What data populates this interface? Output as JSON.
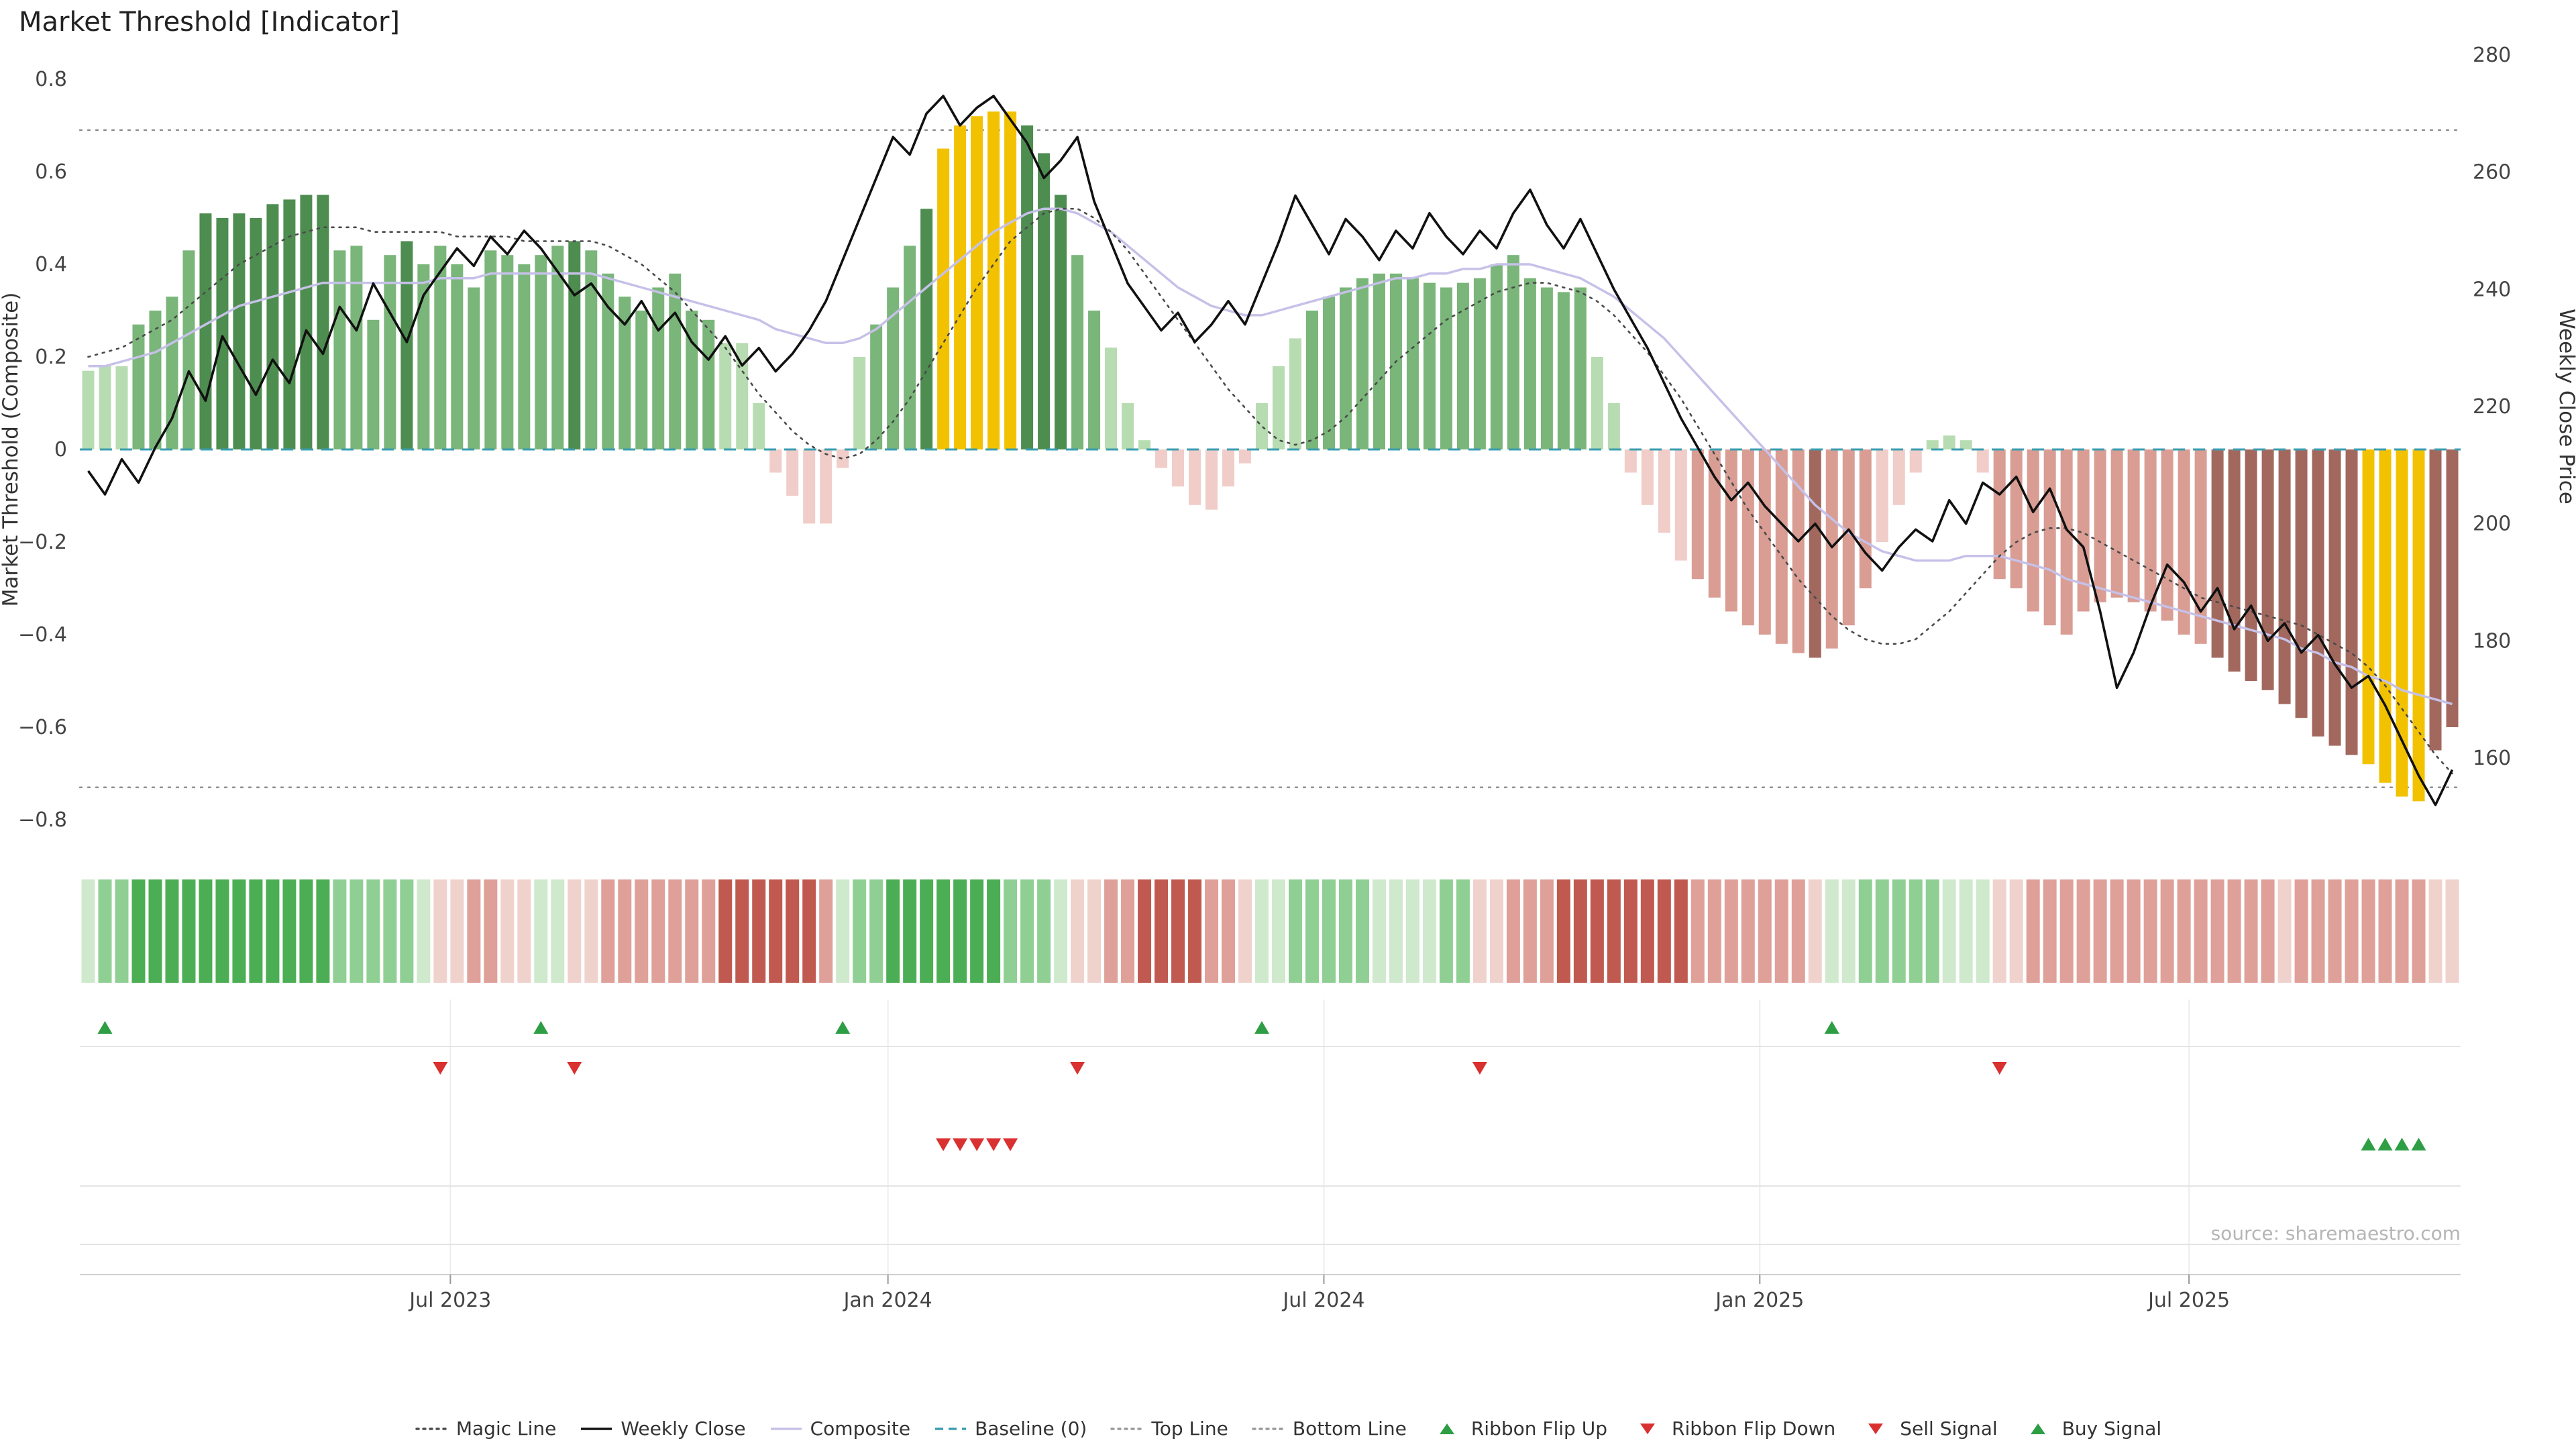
{
  "title": "Market Threshold [Indicator]",
  "source": "source: sharemaestro.com",
  "axes": {
    "left_label": "Market Threshold (Composite)",
    "right_label": "Weekly Close Price",
    "left_ticks": [
      "0.8",
      "0.6",
      "0.4",
      "0.2",
      "0",
      "−0.2",
      "−0.4",
      "−0.6",
      "−0.8"
    ],
    "left_tick_values": [
      0.8,
      0.6,
      0.4,
      0.2,
      0,
      -0.2,
      -0.4,
      -0.6,
      -0.8
    ],
    "right_ticks": [
      "280",
      "260",
      "240",
      "220",
      "200",
      "180",
      "160"
    ],
    "right_tick_values": [
      280,
      260,
      240,
      220,
      200,
      180,
      160
    ],
    "x_ticks": [
      {
        "label": "Jul 2023",
        "week": 21.6
      },
      {
        "label": "Jan 2024",
        "week": 47.7
      },
      {
        "label": "Jul 2024",
        "week": 73.7
      },
      {
        "label": "Jan 2025",
        "week": 99.7
      },
      {
        "label": "Jul 2025",
        "week": 125.3
      }
    ]
  },
  "chart_data": {
    "type": "bar",
    "x_unit": "week",
    "n_points": 142,
    "left_range": [
      -0.8,
      0.8
    ],
    "right_range": [
      160,
      280
    ],
    "baseline": 0,
    "top_line": 0.69,
    "bottom_line": -0.73,
    "threshold_bars": [
      0.17,
      0.18,
      0.18,
      0.27,
      0.3,
      0.33,
      0.43,
      0.51,
      0.5,
      0.51,
      0.5,
      0.53,
      0.54,
      0.55,
      0.55,
      0.43,
      0.44,
      0.28,
      0.42,
      0.45,
      0.4,
      0.44,
      0.4,
      0.35,
      0.43,
      0.42,
      0.4,
      0.42,
      0.44,
      0.45,
      0.43,
      0.38,
      0.33,
      0.3,
      0.35,
      0.38,
      0.3,
      0.28,
      0.23,
      0.23,
      0.1,
      -0.05,
      -0.1,
      -0.16,
      -0.16,
      -0.04,
      0.2,
      0.27,
      0.35,
      0.44,
      0.52,
      0.65,
      0.7,
      0.72,
      0.73,
      0.73,
      0.7,
      0.64,
      0.55,
      0.42,
      0.3,
      0.22,
      0.1,
      0.02,
      -0.04,
      -0.08,
      -0.12,
      -0.13,
      -0.08,
      -0.03,
      0.1,
      0.18,
      0.24,
      0.3,
      0.33,
      0.35,
      0.37,
      0.38,
      0.38,
      0.37,
      0.36,
      0.35,
      0.36,
      0.37,
      0.4,
      0.42,
      0.37,
      0.35,
      0.34,
      0.35,
      0.2,
      0.1,
      -0.05,
      -0.12,
      -0.18,
      -0.24,
      -0.28,
      -0.32,
      -0.35,
      -0.38,
      -0.4,
      -0.42,
      -0.44,
      -0.45,
      -0.43,
      -0.38,
      -0.3,
      -0.2,
      -0.12,
      -0.05,
      0.02,
      0.03,
      0.02,
      -0.05,
      -0.28,
      -0.3,
      -0.35,
      -0.38,
      -0.4,
      -0.35,
      -0.33,
      -0.32,
      -0.33,
      -0.35,
      -0.37,
      -0.4,
      -0.42,
      -0.45,
      -0.48,
      -0.5,
      -0.52,
      -0.55,
      -0.58,
      -0.62,
      -0.64,
      -0.66,
      -0.68,
      -0.72,
      -0.75,
      -0.76,
      -0.65,
      -0.6
    ],
    "gold_bars_positive": [
      51,
      52,
      53,
      54,
      55
    ],
    "gold_bars_negative": [
      136,
      137,
      138,
      139
    ],
    "series": [
      {
        "name": "Weekly Close",
        "axis": "right",
        "values": [
          209,
          205,
          211,
          207,
          213,
          218,
          226,
          221,
          232,
          227,
          222,
          228,
          224,
          233,
          229,
          237,
          233,
          241,
          236,
          231,
          239,
          243,
          247,
          244,
          249,
          246,
          250,
          247,
          243,
          239,
          241,
          237,
          234,
          238,
          233,
          236,
          231,
          228,
          232,
          227,
          230,
          226,
          229,
          233,
          238,
          245,
          252,
          259,
          266,
          263,
          270,
          273,
          268,
          271,
          273,
          269,
          265,
          259,
          262,
          266,
          255,
          248,
          241,
          237,
          233,
          236,
          231,
          234,
          238,
          234,
          241,
          248,
          256,
          251,
          246,
          252,
          249,
          245,
          250,
          247,
          253,
          249,
          246,
          250,
          247,
          253,
          257,
          251,
          247,
          252,
          246,
          240,
          235,
          230,
          224,
          218,
          213,
          208,
          204,
          207,
          203,
          200,
          197,
          200,
          196,
          199,
          195,
          192,
          196,
          199,
          197,
          204,
          200,
          207,
          205,
          208,
          202,
          206,
          199,
          196,
          185,
          172,
          178,
          186,
          193,
          190,
          185,
          189,
          182,
          186,
          180,
          183,
          178,
          181,
          176,
          172,
          174,
          169,
          163,
          157,
          152,
          158
        ]
      },
      {
        "name": "Composite",
        "axis": "left",
        "values": [
          0.18,
          0.18,
          0.19,
          0.2,
          0.21,
          0.23,
          0.25,
          0.27,
          0.29,
          0.31,
          0.32,
          0.33,
          0.34,
          0.35,
          0.36,
          0.36,
          0.36,
          0.36,
          0.36,
          0.36,
          0.36,
          0.37,
          0.37,
          0.37,
          0.38,
          0.38,
          0.38,
          0.38,
          0.38,
          0.38,
          0.38,
          0.37,
          0.36,
          0.35,
          0.34,
          0.33,
          0.32,
          0.31,
          0.3,
          0.29,
          0.28,
          0.26,
          0.25,
          0.24,
          0.23,
          0.23,
          0.24,
          0.26,
          0.29,
          0.32,
          0.35,
          0.38,
          0.41,
          0.44,
          0.47,
          0.49,
          0.51,
          0.52,
          0.52,
          0.51,
          0.49,
          0.47,
          0.44,
          0.41,
          0.38,
          0.35,
          0.33,
          0.31,
          0.3,
          0.29,
          0.29,
          0.3,
          0.31,
          0.32,
          0.33,
          0.34,
          0.35,
          0.36,
          0.37,
          0.37,
          0.38,
          0.38,
          0.39,
          0.39,
          0.4,
          0.4,
          0.4,
          0.39,
          0.38,
          0.37,
          0.35,
          0.33,
          0.3,
          0.27,
          0.24,
          0.2,
          0.16,
          0.12,
          0.08,
          0.04,
          0.0,
          -0.04,
          -0.08,
          -0.12,
          -0.15,
          -0.18,
          -0.2,
          -0.22,
          -0.23,
          -0.24,
          -0.24,
          -0.24,
          -0.23,
          -0.23,
          -0.23,
          -0.24,
          -0.25,
          -0.26,
          -0.28,
          -0.29,
          -0.3,
          -0.31,
          -0.32,
          -0.33,
          -0.34,
          -0.35,
          -0.36,
          -0.37,
          -0.38,
          -0.39,
          -0.4,
          -0.41,
          -0.43,
          -0.44,
          -0.46,
          -0.47,
          -0.49,
          -0.5,
          -0.52,
          -0.53,
          -0.54,
          -0.55
        ]
      },
      {
        "name": "Magic Line",
        "axis": "left",
        "values": [
          0.2,
          0.21,
          0.22,
          0.24,
          0.26,
          0.28,
          0.31,
          0.34,
          0.37,
          0.4,
          0.42,
          0.44,
          0.46,
          0.47,
          0.48,
          0.48,
          0.48,
          0.47,
          0.47,
          0.47,
          0.47,
          0.47,
          0.46,
          0.46,
          0.46,
          0.46,
          0.45,
          0.45,
          0.45,
          0.45,
          0.45,
          0.44,
          0.42,
          0.4,
          0.37,
          0.34,
          0.3,
          0.26,
          0.22,
          0.17,
          0.12,
          0.08,
          0.04,
          0.01,
          -0.01,
          -0.02,
          -0.01,
          0.02,
          0.06,
          0.11,
          0.17,
          0.23,
          0.29,
          0.35,
          0.4,
          0.45,
          0.48,
          0.51,
          0.52,
          0.52,
          0.5,
          0.47,
          0.43,
          0.38,
          0.33,
          0.28,
          0.23,
          0.18,
          0.13,
          0.09,
          0.05,
          0.02,
          0.01,
          0.02,
          0.04,
          0.07,
          0.11,
          0.15,
          0.19,
          0.22,
          0.25,
          0.28,
          0.3,
          0.32,
          0.34,
          0.35,
          0.36,
          0.36,
          0.35,
          0.34,
          0.32,
          0.29,
          0.25,
          0.21,
          0.16,
          0.11,
          0.05,
          -0.01,
          -0.07,
          -0.13,
          -0.18,
          -0.23,
          -0.28,
          -0.32,
          -0.36,
          -0.39,
          -0.41,
          -0.42,
          -0.42,
          -0.41,
          -0.38,
          -0.35,
          -0.31,
          -0.27,
          -0.23,
          -0.2,
          -0.18,
          -0.17,
          -0.17,
          -0.18,
          -0.2,
          -0.22,
          -0.24,
          -0.26,
          -0.28,
          -0.3,
          -0.32,
          -0.33,
          -0.34,
          -0.35,
          -0.36,
          -0.37,
          -0.38,
          -0.4,
          -0.42,
          -0.44,
          -0.47,
          -0.51,
          -0.56,
          -0.61,
          -0.66,
          -0.7
        ]
      }
    ],
    "ribbon": [
      1,
      2,
      2,
      3,
      3,
      3,
      3,
      3,
      3,
      3,
      3,
      3,
      3,
      3,
      3,
      2,
      2,
      2,
      2,
      2,
      1,
      -1,
      -1,
      -2,
      -2,
      -1,
      -1,
      1,
      1,
      -1,
      -1,
      -2,
      -2,
      -2,
      -2,
      -2,
      -2,
      -2,
      -3,
      -3,
      -3,
      -3,
      -3,
      -3,
      -2,
      1,
      2,
      2,
      3,
      3,
      3,
      3,
      3,
      3,
      3,
      2,
      2,
      2,
      1,
      -1,
      -1,
      -2,
      -2,
      -3,
      -3,
      -3,
      -3,
      -2,
      -2,
      -1,
      1,
      1,
      2,
      2,
      2,
      2,
      2,
      1,
      1,
      1,
      1,
      2,
      2,
      -1,
      -1,
      -2,
      -2,
      -2,
      -3,
      -3,
      -3,
      -3,
      -3,
      -3,
      -3,
      -3,
      -2,
      -2,
      -2,
      -2,
      -2,
      -2,
      -2,
      -1,
      1,
      1,
      2,
      2,
      2,
      2,
      2,
      1,
      1,
      1,
      -1,
      -1,
      -2,
      -2,
      -2,
      -2,
      -2,
      -2,
      -2,
      -2,
      -2,
      -2,
      -2,
      -2,
      -2,
      -2,
      -2,
      -1,
      -2,
      -2,
      -2,
      -2,
      -2,
      -2,
      -2,
      -2,
      -1,
      -1
    ],
    "signals": {
      "ribbon_flip_up_weeks": [
        1,
        27,
        45,
        70,
        104
      ],
      "ribbon_flip_down_weeks": [
        21,
        29,
        59,
        83,
        114
      ],
      "sell_signal_weeks": [
        51,
        52,
        53,
        54,
        55
      ],
      "buy_signal_weeks": [
        136,
        137,
        138,
        139
      ]
    }
  },
  "colors": {
    "gold": "#f2c200",
    "green_dark": "#4e8d50",
    "green_mid": "#7ab57a",
    "green_light": "#b7dcb1",
    "red_dark": "#a2685e",
    "red_mid": "#d99d94",
    "red_light": "#f0cdc8",
    "ribbon_green_3": "#4cae54",
    "ribbon_green_2": "#90cf93",
    "ribbon_green_1": "#cfe9cd",
    "ribbon_red_1": "#f0d2cd",
    "ribbon_red_2": "#dfa099",
    "ribbon_red_3": "#c05a50",
    "weekly_close": "#111111",
    "composite": "#c6c1e8",
    "magic": "#4a4a4a",
    "baseline": "#3b9db0",
    "guide": "#8a8a8a",
    "flip_up": "#2e9e44",
    "flip_down": "#d93030"
  },
  "legend": [
    {
      "label": "Magic Line",
      "marker": "dotted-line",
      "color": "#4a4a4a"
    },
    {
      "label": "Weekly Close",
      "marker": "solid-line",
      "color": "#111111"
    },
    {
      "label": "Composite",
      "marker": "solid-line",
      "color": "#c6c1e8"
    },
    {
      "label": "Baseline (0)",
      "marker": "dashed-line",
      "color": "#3b9db0"
    },
    {
      "label": "Top Line",
      "marker": "dotted-line",
      "color": "#999999"
    },
    {
      "label": "Bottom Line",
      "marker": "dotted-line",
      "color": "#999999"
    },
    {
      "label": "Ribbon Flip Up",
      "marker": "triangle-up",
      "color": "#2e9e44"
    },
    {
      "label": "Ribbon Flip Down",
      "marker": "triangle-down",
      "color": "#d93030"
    },
    {
      "label": "Sell Signal",
      "marker": "triangle-down",
      "color": "#d93030"
    },
    {
      "label": "Buy Signal",
      "marker": "triangle-up",
      "color": "#2e9e44"
    }
  ]
}
